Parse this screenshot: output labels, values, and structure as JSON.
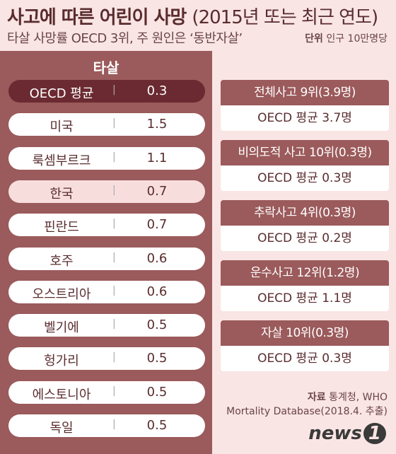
{
  "header": {
    "title": "사고에 따른 어린이 사망",
    "title_note": "(2015년 또는 최근 연도)",
    "subtitle": "타살 사망률 OECD 3위, 주 원인은 ‘동반자살’",
    "unit_label": "단위",
    "unit": "인구 10만명당"
  },
  "table": {
    "title": "타살",
    "rows": [
      [
        "OECD 평균",
        0.3
      ],
      [
        "미국",
        1.5
      ],
      [
        "룩셈부르크",
        1.1
      ],
      [
        "한국",
        0.7
      ],
      [
        "핀란드",
        0.7
      ],
      [
        "호주",
        0.6
      ],
      [
        "오스트리아",
        0.6
      ],
      [
        "벨기에",
        0.5
      ],
      [
        "헝가리",
        0.5
      ],
      [
        "에스토니아",
        0.5
      ],
      [
        "독일",
        0.5
      ]
    ]
  },
  "boxes": [
    {
      "title": "전체사고 9위(3.9명)",
      "oecd": "OECD 평균 3.7명"
    },
    {
      "title": "비의도적 사고 10위(0.3명)",
      "oecd": "OECD 평균 0.3명"
    },
    {
      "title": "추락사고 4위(0.3명)",
      "oecd": "OECD 평균 0.2명"
    },
    {
      "title": "운수사고 12위(1.2명)",
      "oecd": "OECD 평균 1.1명"
    },
    {
      "title": "자살 10위(0.3명)",
      "oecd": "OECD 평균 0.3명"
    }
  ],
  "source": {
    "label": "자료",
    "text": "통계청, WHO",
    "text2": "Mortality Database(2018.4. 추출)"
  },
  "logo": {
    "text": "news",
    "mark": "1"
  }
}
